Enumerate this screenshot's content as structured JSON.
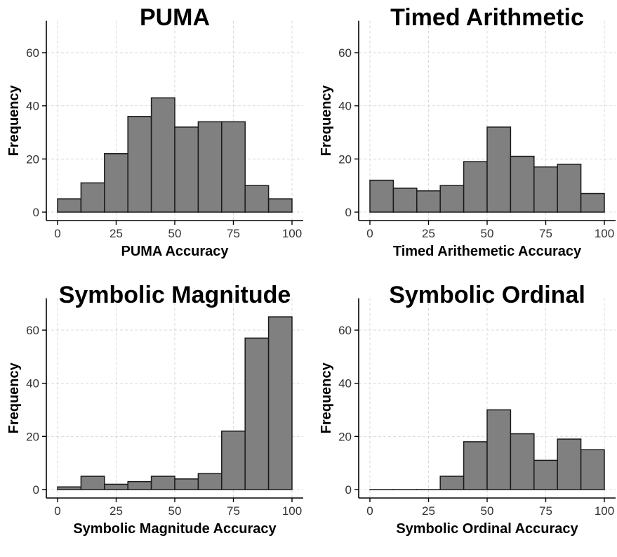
{
  "chart_data": [
    {
      "type": "bar",
      "title": "PUMA",
      "xlabel": "PUMA Accuracy",
      "ylabel": "Frequency",
      "bin_edges": [
        0,
        10,
        20,
        30,
        40,
        50,
        60,
        70,
        80,
        90,
        100
      ],
      "values": [
        5,
        11,
        22,
        36,
        43,
        32,
        34,
        34,
        10,
        5
      ],
      "xlim": [
        0,
        100
      ],
      "ylim": [
        0,
        72
      ],
      "xticks": [
        "0",
        "25",
        "50",
        "75",
        "100"
      ],
      "yticks": [
        "0",
        "20",
        "40",
        "60"
      ],
      "grid": true
    },
    {
      "type": "bar",
      "title": "Timed Arithmetic",
      "xlabel": "Timed Arithemetic Accuracy",
      "ylabel": "Frequency",
      "bin_edges": [
        0,
        10,
        20,
        30,
        40,
        50,
        60,
        70,
        80,
        90,
        100
      ],
      "values": [
        12,
        9,
        8,
        10,
        19,
        32,
        21,
        17,
        18,
        7
      ],
      "xlim": [
        0,
        100
      ],
      "ylim": [
        0,
        72
      ],
      "xticks": [
        "0",
        "25",
        "50",
        "75",
        "100"
      ],
      "yticks": [
        "0",
        "20",
        "40",
        "60"
      ],
      "grid": true
    },
    {
      "type": "bar",
      "title": "Symbolic Magnitude",
      "xlabel": "Symbolic Magnitude Accuracy",
      "ylabel": "Frequency",
      "bin_edges": [
        0,
        10,
        20,
        30,
        40,
        50,
        60,
        70,
        80,
        90,
        100
      ],
      "values": [
        1,
        5,
        2,
        3,
        5,
        4,
        6,
        22,
        57,
        65
      ],
      "xlim": [
        0,
        100
      ],
      "ylim": [
        0,
        72
      ],
      "xticks": [
        "0",
        "25",
        "50",
        "75",
        "100"
      ],
      "yticks": [
        "0",
        "20",
        "40",
        "60"
      ],
      "grid": true
    },
    {
      "type": "bar",
      "title": "Symbolic Ordinal",
      "xlabel": "Symbolic Ordinal Accuracy",
      "ylabel": "Frequency",
      "bin_edges": [
        0,
        10,
        20,
        30,
        40,
        50,
        60,
        70,
        80,
        90,
        100
      ],
      "values": [
        0,
        0,
        0,
        5,
        18,
        30,
        21,
        11,
        19,
        15
      ],
      "xlim": [
        0,
        100
      ],
      "ylim": [
        0,
        72
      ],
      "xticks": [
        "0",
        "25",
        "50",
        "75",
        "100"
      ],
      "yticks": [
        "0",
        "20",
        "40",
        "60"
      ],
      "grid": true
    }
  ]
}
